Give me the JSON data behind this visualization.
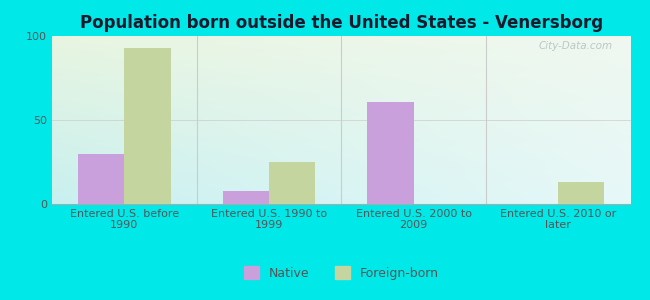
{
  "title": "Population born outside the United States - Venersborg",
  "categories": [
    "Entered U.S. before\n1990",
    "Entered U.S. 1990 to\n1999",
    "Entered U.S. 2000 to\n2009",
    "Entered U.S. 2010 or\nlater"
  ],
  "native": [
    30,
    8,
    61,
    0
  ],
  "foreign_born": [
    93,
    25,
    0,
    13
  ],
  "native_color": "#c9a0dc",
  "foreign_born_color": "#c5d5a0",
  "background_color": "#00e8e8",
  "ylim": [
    0,
    100
  ],
  "yticks": [
    0,
    50,
    100
  ],
  "bar_width": 0.32,
  "title_fontsize": 12,
  "tick_fontsize": 8,
  "legend_fontsize": 9,
  "watermark_text": "City-Data.com",
  "title_color": "#1a1a2e",
  "tick_color": "#555555",
  "divider_color": "#cccccc",
  "bottom_spine_color": "#aaaaaa"
}
